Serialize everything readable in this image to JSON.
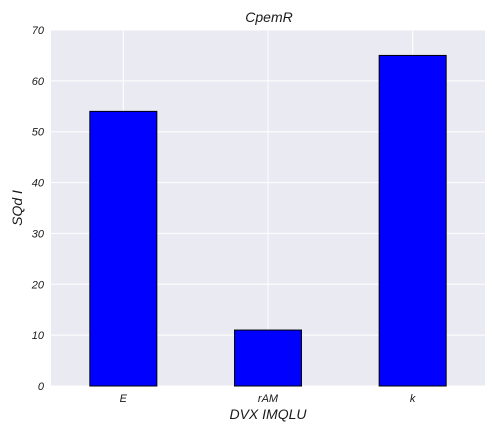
{
  "chart_data": {
    "type": "bar",
    "title": "CpemR",
    "xlabel": "DVX IMQLU",
    "ylabel": "SQd I",
    "categories": [
      "E",
      "rAM",
      "k"
    ],
    "values": [
      54,
      11,
      65
    ],
    "ylim": [
      0,
      70
    ],
    "yticks": [
      "0",
      "10",
      "20",
      "30",
      "40",
      "50",
      "60",
      "70"
    ],
    "grid": true,
    "colors": {
      "bar": "#0000ff",
      "bar_edge": "#000000",
      "plot_background": "#eaeaf2",
      "grid": "#ffffff"
    }
  }
}
